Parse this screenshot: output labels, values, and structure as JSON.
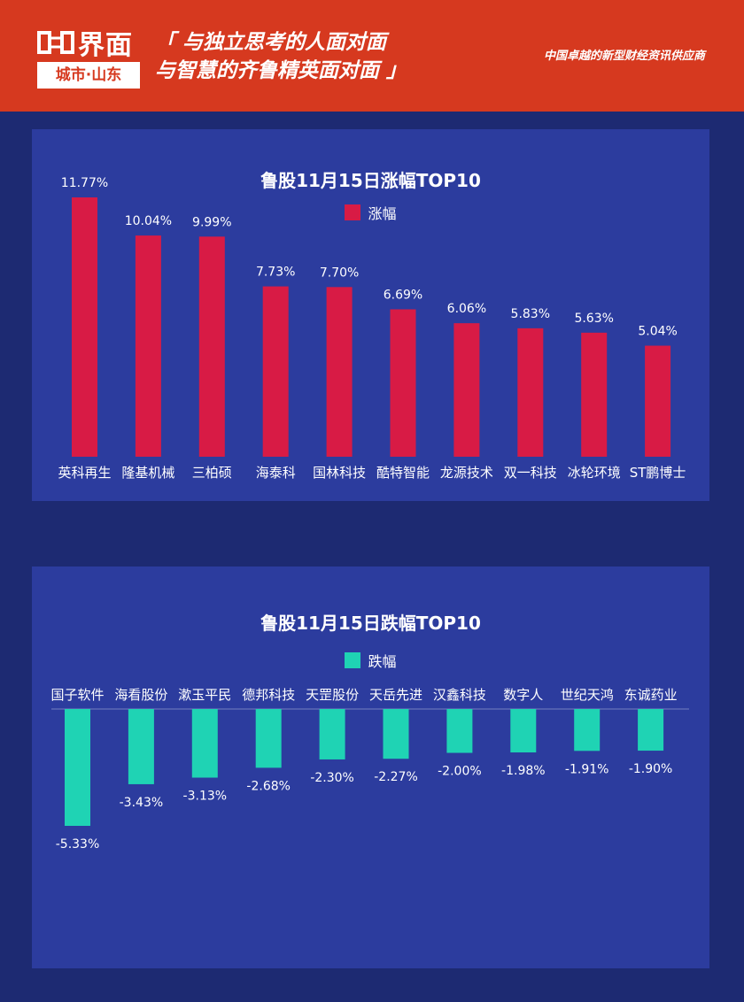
{
  "header": {
    "logo_brand": "界面",
    "logo_sub": "城市·山东",
    "slogan_line1": "「 与独立思考的人面对面",
    "slogan_line2": "与智慧的齐鲁精英面对面 」",
    "tagline": "中国卓越的新型财经资讯供应商"
  },
  "colors": {
    "header_bg": "#d6391f",
    "page_bg": "#1d2a72",
    "panel_bg": "#2c3c9e",
    "gain_bar": "#d81b45",
    "loss_bar": "#1fd3b4"
  },
  "chart_data": [
    {
      "type": "bar",
      "title": "鲁股11月15日涨幅TOP10",
      "legend": "涨幅",
      "categories": [
        "英科再生",
        "隆基机械",
        "三柏硕",
        "海泰科",
        "国林科技",
        "酷特智能",
        "龙源技术",
        "双一科技",
        "冰轮环境",
        "ST鹏博士"
      ],
      "values": [
        11.77,
        10.04,
        9.99,
        7.73,
        7.7,
        6.69,
        6.06,
        5.83,
        5.63,
        5.04
      ],
      "labels": [
        "11.77%",
        "10.04%",
        "9.99%",
        "7.73%",
        "7.70%",
        "6.69%",
        "6.06%",
        "5.83%",
        "5.63%",
        "5.04%"
      ],
      "ylim": [
        0,
        11.77
      ],
      "grid": false
    },
    {
      "type": "bar",
      "title": "鲁股11月15日跌幅TOP10",
      "legend": "跌幅",
      "categories": [
        "国子软件",
        "海看股份",
        "漱玉平民",
        "德邦科技",
        "天罡股份",
        "天岳先进",
        "汉鑫科技",
        "数字人",
        "世纪天鸿",
        "东诚药业"
      ],
      "values": [
        -5.33,
        -3.43,
        -3.13,
        -2.68,
        -2.3,
        -2.27,
        -2.0,
        -1.98,
        -1.91,
        -1.9
      ],
      "labels": [
        "-5.33%",
        "-3.43%",
        "-3.13%",
        "-2.68%",
        "-2.30%",
        "-2.27%",
        "-2.00%",
        "-1.98%",
        "-1.91%",
        "-1.90%"
      ],
      "ylim": [
        -5.33,
        0
      ],
      "grid": false
    }
  ]
}
